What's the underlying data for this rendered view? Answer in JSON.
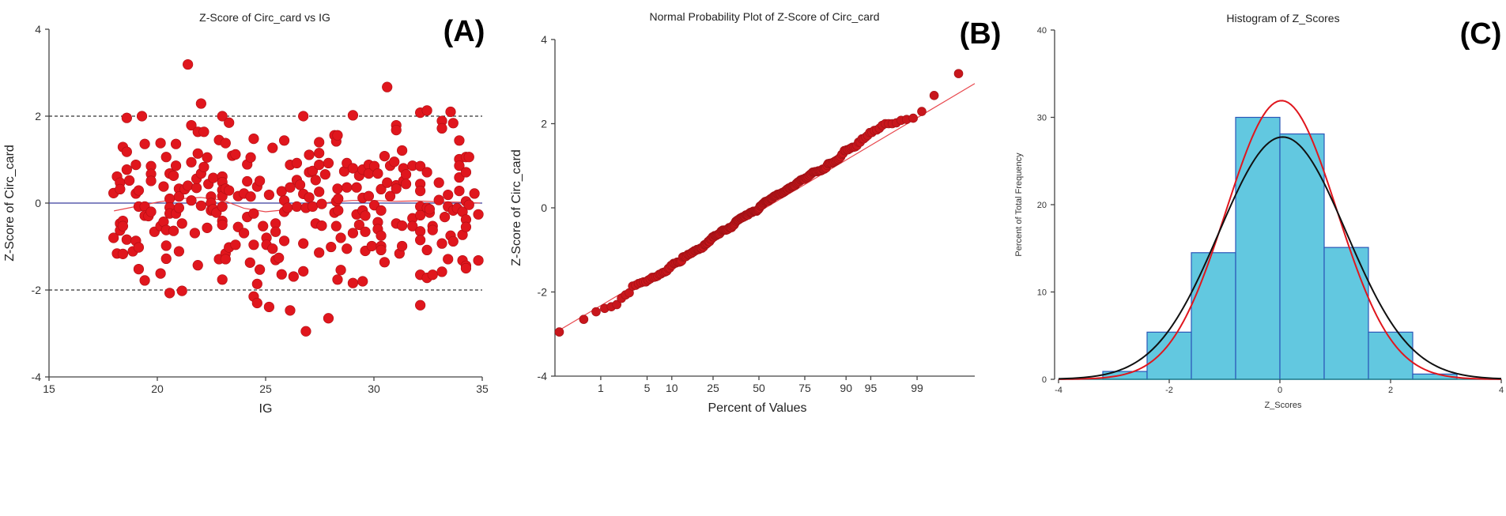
{
  "chart_data": [
    {
      "type": "scatter",
      "panel_label": "(A)",
      "title": "Z-Score of Circ_card vs IG",
      "xlabel": "IG",
      "ylabel": "Z-Score of Circ_card",
      "xlim": [
        15,
        35
      ],
      "ylim": [
        -4,
        4
      ],
      "xticks": [
        15,
        20,
        25,
        30,
        35
      ],
      "yticks": [
        -4,
        -2,
        0,
        2,
        4
      ],
      "reference_lines": {
        "zero": 0,
        "limits": [
          -2,
          2
        ]
      },
      "grid": false,
      "colors": {
        "points": "#e0161d",
        "zero_line": "#3b3f9e",
        "limit_lines": "#333333",
        "smoother": "#e8474d"
      },
      "smoother": [
        [
          18,
          -0.18
        ],
        [
          19,
          -0.08
        ],
        [
          20,
          0.02
        ],
        [
          21,
          0.1
        ],
        [
          22,
          0.13
        ],
        [
          23,
          0.07
        ],
        [
          24,
          -0.12
        ],
        [
          25,
          -0.2
        ],
        [
          26,
          -0.15
        ],
        [
          27,
          -0.05
        ],
        [
          28,
          0.02
        ],
        [
          29,
          0.06
        ],
        [
          30,
          0.06
        ],
        [
          31,
          0.04
        ],
        [
          32,
          0.05
        ],
        [
          33,
          0.03
        ],
        [
          34,
          0.02
        ],
        [
          34.9,
          0.0
        ]
      ],
      "points": [
        [
          17.98,
          0.23
        ],
        [
          17.98,
          -0.8
        ],
        [
          18.14,
          0.61
        ],
        [
          18.14,
          -1.16
        ],
        [
          18.28,
          0.47
        ],
        [
          18.28,
          0.32
        ],
        [
          18.28,
          -0.47
        ],
        [
          18.28,
          -0.63
        ],
        [
          18.41,
          1.29
        ],
        [
          18.41,
          -0.41
        ],
        [
          18.41,
          -1.17
        ],
        [
          18.41,
          -0.53
        ],
        [
          18.59,
          1.96
        ],
        [
          18.59,
          1.18
        ],
        [
          18.59,
          0.77
        ],
        [
          18.59,
          -0.84
        ],
        [
          18.71,
          0.52
        ],
        [
          18.87,
          -1.11
        ],
        [
          19.01,
          0.88
        ],
        [
          19.01,
          0.22
        ],
        [
          19.01,
          -0.87
        ],
        [
          19.14,
          0.29
        ],
        [
          19.14,
          -0.08
        ],
        [
          19.14,
          -1.02
        ],
        [
          19.14,
          -1.52
        ],
        [
          19.29,
          2.0
        ],
        [
          19.42,
          1.36
        ],
        [
          19.42,
          -0.08
        ],
        [
          19.42,
          -0.29
        ],
        [
          19.42,
          -1.78
        ],
        [
          19.59,
          -0.3
        ],
        [
          19.71,
          0.85
        ],
        [
          19.71,
          0.67
        ],
        [
          19.71,
          0.51
        ],
        [
          19.71,
          -0.2
        ],
        [
          19.87,
          -0.66
        ],
        [
          20.15,
          1.38
        ],
        [
          20.15,
          -0.53
        ],
        [
          20.15,
          -1.62
        ],
        [
          20.29,
          0.38
        ],
        [
          20.29,
          -0.43
        ],
        [
          20.41,
          1.06
        ],
        [
          20.41,
          -0.98
        ],
        [
          20.41,
          -1.28
        ],
        [
          20.41,
          -0.62
        ],
        [
          20.57,
          0.68
        ],
        [
          20.57,
          0.1
        ],
        [
          20.57,
          -0.1
        ],
        [
          20.57,
          -0.24
        ],
        [
          20.57,
          -2.07
        ],
        [
          20.75,
          0.63
        ],
        [
          20.75,
          -0.64
        ],
        [
          20.86,
          1.36
        ],
        [
          20.86,
          0.86
        ],
        [
          20.86,
          -0.24
        ],
        [
          21.0,
          0.33
        ],
        [
          21.0,
          0.15
        ],
        [
          21.0,
          -0.11
        ],
        [
          21.0,
          -1.11
        ],
        [
          21.14,
          -0.47
        ],
        [
          21.14,
          -2.02
        ],
        [
          21.27,
          0.32
        ],
        [
          21.41,
          3.19
        ],
        [
          21.41,
          0.4
        ],
        [
          21.57,
          1.79
        ],
        [
          21.57,
          0.94
        ],
        [
          21.57,
          0.06
        ],
        [
          21.73,
          -0.69
        ],
        [
          21.81,
          0.35
        ],
        [
          21.81,
          0.56
        ],
        [
          21.87,
          1.14
        ],
        [
          21.87,
          1.64
        ],
        [
          21.87,
          -1.43
        ],
        [
          22.02,
          2.29
        ],
        [
          22.02,
          0.68
        ],
        [
          22.02,
          -0.06
        ],
        [
          22.15,
          1.64
        ],
        [
          22.15,
          0.83
        ],
        [
          22.3,
          1.05
        ],
        [
          22.3,
          -0.57
        ],
        [
          22.36,
          0.44
        ],
        [
          22.48,
          0.15
        ],
        [
          22.48,
          0.0
        ],
        [
          22.48,
          -0.17
        ],
        [
          22.58,
          0.58
        ],
        [
          22.58,
          -0.14
        ],
        [
          22.73,
          -0.22
        ],
        [
          22.85,
          1.45
        ],
        [
          22.85,
          -1.29
        ],
        [
          23.0,
          2.0
        ],
        [
          23.0,
          0.61
        ],
        [
          23.0,
          0.48
        ],
        [
          23.0,
          0.3
        ],
        [
          23.0,
          0.16
        ],
        [
          23.0,
          -0.08
        ],
        [
          23.0,
          -0.41
        ],
        [
          23.0,
          -0.5
        ],
        [
          23.0,
          -1.76
        ],
        [
          23.15,
          1.38
        ],
        [
          23.15,
          0.33
        ],
        [
          23.15,
          -1.16
        ],
        [
          23.15,
          -1.29
        ],
        [
          23.31,
          1.85
        ],
        [
          23.31,
          0.29
        ],
        [
          23.31,
          -1.02
        ],
        [
          23.46,
          1.09
        ],
        [
          23.61,
          1.12
        ],
        [
          23.61,
          -0.96
        ],
        [
          23.73,
          0.16
        ],
        [
          23.73,
          -0.55
        ],
        [
          24.0,
          0.22
        ],
        [
          24.0,
          -0.69
        ],
        [
          24.15,
          0.89
        ],
        [
          24.15,
          0.5
        ],
        [
          24.15,
          -0.32
        ],
        [
          24.31,
          1.05
        ],
        [
          24.31,
          0.15
        ],
        [
          24.45,
          1.48
        ],
        [
          24.45,
          -0.24
        ],
        [
          24.45,
          -0.96
        ],
        [
          24.45,
          -2.15
        ],
        [
          24.28,
          -1.37
        ],
        [
          24.61,
          0.38
        ],
        [
          24.61,
          -2.3
        ],
        [
          24.61,
          -1.86
        ],
        [
          24.73,
          0.51
        ],
        [
          24.73,
          -1.53
        ],
        [
          24.88,
          -0.53
        ],
        [
          25.04,
          -0.8
        ],
        [
          25.04,
          -0.96
        ],
        [
          25.16,
          0.19
        ],
        [
          25.16,
          -2.39
        ],
        [
          25.32,
          1.27
        ],
        [
          25.32,
          -1.05
        ],
        [
          25.46,
          -0.47
        ],
        [
          25.46,
          -0.66
        ],
        [
          25.46,
          -1.31
        ],
        [
          25.61,
          -1.26
        ],
        [
          25.74,
          0.27
        ],
        [
          25.74,
          -1.64
        ],
        [
          25.86,
          1.44
        ],
        [
          25.86,
          0.06
        ],
        [
          25.86,
          -0.2
        ],
        [
          25.86,
          -0.87
        ],
        [
          26.01,
          -0.11
        ],
        [
          26.13,
          0.88
        ],
        [
          26.13,
          0.36
        ],
        [
          26.13,
          -2.47
        ],
        [
          26.29,
          -1.69
        ],
        [
          26.44,
          0.92
        ],
        [
          26.44,
          0.53
        ],
        [
          26.44,
          -0.08
        ],
        [
          26.59,
          0.42
        ],
        [
          26.74,
          2.0
        ],
        [
          26.74,
          0.21
        ],
        [
          26.74,
          -0.93
        ],
        [
          26.74,
          -1.57
        ],
        [
          26.86,
          -2.95
        ],
        [
          26.86,
          -0.11
        ],
        [
          27.01,
          1.11
        ],
        [
          27.01,
          0.71
        ],
        [
          27.01,
          0.13
        ],
        [
          27.17,
          0.74
        ],
        [
          27.17,
          -0.08
        ],
        [
          27.31,
          0.53
        ],
        [
          27.31,
          -0.47
        ],
        [
          27.47,
          1.4
        ],
        [
          27.47,
          1.15
        ],
        [
          27.47,
          0.88
        ],
        [
          27.47,
          0.26
        ],
        [
          27.47,
          -1.14
        ],
        [
          27.59,
          -0.02
        ],
        [
          27.59,
          -0.52
        ],
        [
          27.75,
          0.66
        ],
        [
          27.9,
          0.92
        ],
        [
          27.9,
          -2.65
        ],
        [
          28.02,
          -1.01
        ],
        [
          28.18,
          1.56
        ],
        [
          28.18,
          -0.22
        ],
        [
          28.26,
          1.42
        ],
        [
          28.26,
          0.04
        ],
        [
          28.26,
          -0.53
        ],
        [
          28.32,
          1.56
        ],
        [
          28.32,
          0.33
        ],
        [
          28.32,
          -1.76
        ],
        [
          28.35,
          -0.17
        ],
        [
          28.35,
          0.1
        ],
        [
          28.47,
          -0.8
        ],
        [
          28.47,
          -1.54
        ],
        [
          28.63,
          0.73
        ],
        [
          28.75,
          0.92
        ],
        [
          28.75,
          0.36
        ],
        [
          28.75,
          -1.05
        ],
        [
          29.03,
          2.02
        ],
        [
          29.03,
          0.8
        ],
        [
          29.03,
          -0.69
        ],
        [
          29.03,
          -1.84
        ],
        [
          29.2,
          0.36
        ],
        [
          29.2,
          -0.26
        ],
        [
          29.32,
          0.63
        ],
        [
          29.32,
          -0.5
        ],
        [
          29.48,
          0.77
        ],
        [
          29.48,
          0.12
        ],
        [
          29.48,
          -0.17
        ],
        [
          29.48,
          -1.8
        ],
        [
          29.6,
          -0.29
        ],
        [
          29.6,
          -0.66
        ],
        [
          29.6,
          -1.1
        ],
        [
          29.76,
          0.88
        ],
        [
          29.76,
          0.68
        ],
        [
          29.76,
          0.16
        ],
        [
          29.9,
          -0.99
        ],
        [
          30.02,
          -0.05
        ],
        [
          30.02,
          0.85
        ],
        [
          30.18,
          0.68
        ],
        [
          30.18,
          -0.44
        ],
        [
          30.18,
          -0.6
        ],
        [
          30.33,
          0.32
        ],
        [
          30.33,
          -0.17
        ],
        [
          30.33,
          -0.75
        ],
        [
          30.33,
          -0.99
        ],
        [
          30.33,
          -1.08
        ],
        [
          30.49,
          1.08
        ],
        [
          30.49,
          -1.36
        ],
        [
          30.61,
          2.67
        ],
        [
          30.61,
          0.47
        ],
        [
          30.75,
          0.86
        ],
        [
          30.75,
          0.16
        ],
        [
          30.94,
          0.95
        ],
        [
          31.03,
          1.79
        ],
        [
          31.03,
          1.68
        ],
        [
          31.03,
          0.41
        ],
        [
          31.03,
          0.33
        ],
        [
          31.03,
          -0.47
        ],
        [
          31.18,
          -1.16
        ],
        [
          31.3,
          1.21
        ],
        [
          31.3,
          -0.52
        ],
        [
          31.3,
          -0.99
        ],
        [
          31.36,
          0.8
        ],
        [
          31.36,
          0.51
        ],
        [
          31.48,
          0.66
        ],
        [
          31.48,
          0.44
        ],
        [
          31.78,
          0.86
        ],
        [
          31.78,
          -0.35
        ],
        [
          31.78,
          -0.53
        ],
        [
          32.14,
          2.08
        ],
        [
          32.14,
          0.85
        ],
        [
          32.14,
          0.44
        ],
        [
          32.14,
          0.28
        ],
        [
          32.14,
          -0.08
        ],
        [
          32.14,
          -0.28
        ],
        [
          32.14,
          -0.65
        ],
        [
          32.14,
          -0.85
        ],
        [
          32.14,
          -1.65
        ],
        [
          32.14,
          -2.35
        ],
        [
          32.45,
          2.13
        ],
        [
          32.45,
          0.71
        ],
        [
          32.45,
          -0.11
        ],
        [
          32.45,
          -1.08
        ],
        [
          32.45,
          -1.72
        ],
        [
          32.57,
          -0.22
        ],
        [
          32.57,
          -0.14
        ],
        [
          32.71,
          -0.53
        ],
        [
          32.71,
          -0.62
        ],
        [
          32.71,
          -1.65
        ],
        [
          33.0,
          0.47
        ],
        [
          33.0,
          0.07
        ],
        [
          33.14,
          1.89
        ],
        [
          33.14,
          1.72
        ],
        [
          33.14,
          -0.93
        ],
        [
          33.14,
          -1.58
        ],
        [
          33.27,
          -0.32
        ],
        [
          33.42,
          0.19
        ],
        [
          33.42,
          -0.08
        ],
        [
          33.42,
          -1.29
        ],
        [
          33.54,
          2.1
        ],
        [
          33.54,
          -0.75
        ],
        [
          33.66,
          1.84
        ],
        [
          33.66,
          -0.17
        ],
        [
          33.66,
          -0.88
        ],
        [
          33.84,
          -0.12
        ],
        [
          33.94,
          1.44
        ],
        [
          33.94,
          1.01
        ],
        [
          33.94,
          0.86
        ],
        [
          33.94,
          0.59
        ],
        [
          33.94,
          0.28
        ],
        [
          34.09,
          -0.2
        ],
        [
          34.09,
          -0.73
        ],
        [
          34.09,
          -1.32
        ],
        [
          34.25,
          1.06
        ],
        [
          34.25,
          0.71
        ],
        [
          34.25,
          0.04
        ],
        [
          34.25,
          -0.38
        ],
        [
          34.25,
          -0.55
        ],
        [
          34.25,
          -1.44
        ],
        [
          34.25,
          -1.5
        ],
        [
          34.39,
          1.06
        ],
        [
          34.39,
          -0.04
        ],
        [
          34.64,
          0.22
        ],
        [
          34.82,
          -0.26
        ],
        [
          34.82,
          -1.32
        ]
      ]
    },
    {
      "type": "scatter",
      "panel_label": "(B)",
      "title": "Normal Probability Plot of Z-Score of Circ_card",
      "xlabel": "Percent of Values",
      "ylabel": "Z-Score of Circ_card",
      "ylim": [
        -4,
        4
      ],
      "yticks": [
        -4,
        -2,
        0,
        2,
        4
      ],
      "x_scale": "normal-probability",
      "xticks": [
        1,
        5,
        10,
        25,
        50,
        75,
        90,
        95,
        99
      ],
      "reference_line": "normal fit",
      "grid": false,
      "colors": {
        "points": "#c8161c",
        "fit_line": "#e8474d"
      }
    },
    {
      "type": "bar",
      "panel_label": "(C)",
      "title": "Histogram of Z_Scores",
      "xlabel": "Z_Scores",
      "ylabel": "Percent of Total Frequency",
      "xlim": [
        -4,
        4
      ],
      "ylim": [
        0,
        40
      ],
      "xticks": [
        -4,
        -2,
        0,
        2,
        4
      ],
      "yticks": [
        0,
        10,
        20,
        30,
        40
      ],
      "bin_edges": [
        -3.2,
        -2.4,
        -1.6,
        -0.8,
        0,
        0.8,
        1.6,
        2.4,
        3.2
      ],
      "values": [
        0.9,
        5.4,
        14.5,
        30.0,
        28.1,
        15.1,
        5.4,
        0.6
      ],
      "curves": [
        {
          "color": "#e0161d",
          "mean": 0.03,
          "sd": 1.0
        },
        {
          "color": "#111111",
          "mean": 0.05,
          "sd": 1.15
        }
      ],
      "grid": false,
      "colors": {
        "bar_fill": "#62c8e0",
        "bar_edge": "#2b56b8"
      }
    }
  ]
}
